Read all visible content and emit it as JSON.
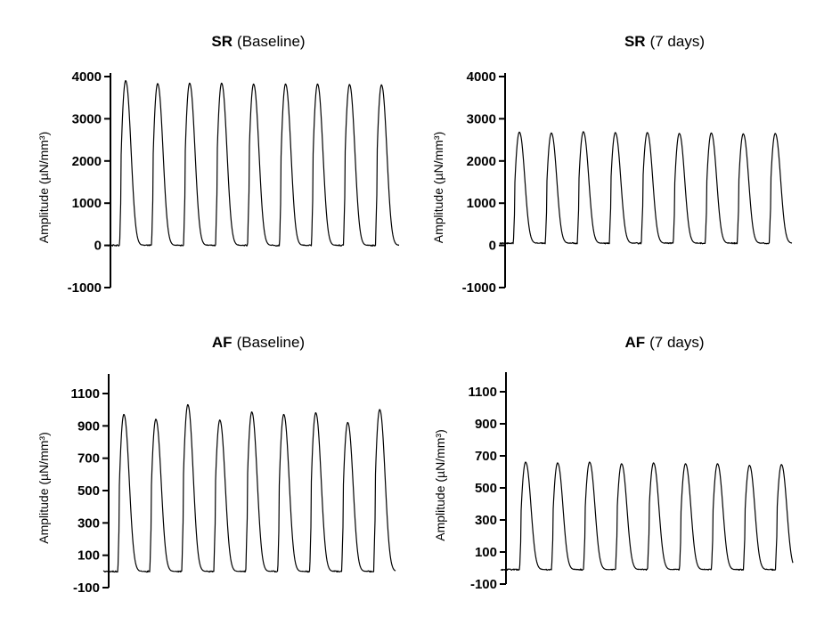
{
  "chart_data": [
    {
      "type": "line",
      "title_bold": "SR",
      "title_rest": "(Baseline)",
      "ylabel": "Amplitude (µN/mm³)",
      "xlabel": "",
      "yticks": [
        -1000,
        0,
        1000,
        2000,
        3000,
        4000
      ],
      "ylim": [
        -1000,
        4000
      ],
      "baseline": 0,
      "peaks": [
        3900,
        3830,
        3840,
        3840,
        3820,
        3820,
        3820,
        3810,
        3800
      ],
      "grid": false
    },
    {
      "type": "line",
      "title_bold": "SR",
      "title_rest": "(7 days)",
      "ylabel": "Amplitude (µN/mm³)",
      "xlabel": "",
      "yticks": [
        -1000,
        0,
        1000,
        2000,
        3000,
        4000
      ],
      "ylim": [
        -1000,
        4000
      ],
      "baseline": 50,
      "peaks": [
        2680,
        2660,
        2690,
        2670,
        2670,
        2650,
        2660,
        2640,
        2650
      ],
      "grid": false
    },
    {
      "type": "line",
      "title_bold": "AF",
      "title_rest": "(Baseline)",
      "ylabel": "Amplitude (µN/mm³)",
      "xlabel": "",
      "yticks": [
        -100,
        100,
        300,
        500,
        700,
        900,
        1100
      ],
      "ylim": [
        -100,
        1200
      ],
      "baseline": 0,
      "peaks": [
        970,
        940,
        1030,
        935,
        985,
        970,
        980,
        920,
        1000
      ],
      "grid": false
    },
    {
      "type": "line",
      "title_bold": "AF",
      "title_rest": "(7 days)",
      "ylabel": "Amplitude (µN/mm³)",
      "xlabel": "",
      "yticks": [
        -100,
        100,
        300,
        500,
        700,
        900,
        1100
      ],
      "ylim": [
        -100,
        1200
      ],
      "baseline": -10,
      "peaks": [
        660,
        655,
        660,
        650,
        655,
        650,
        650,
        640,
        645
      ],
      "grid": false
    }
  ]
}
